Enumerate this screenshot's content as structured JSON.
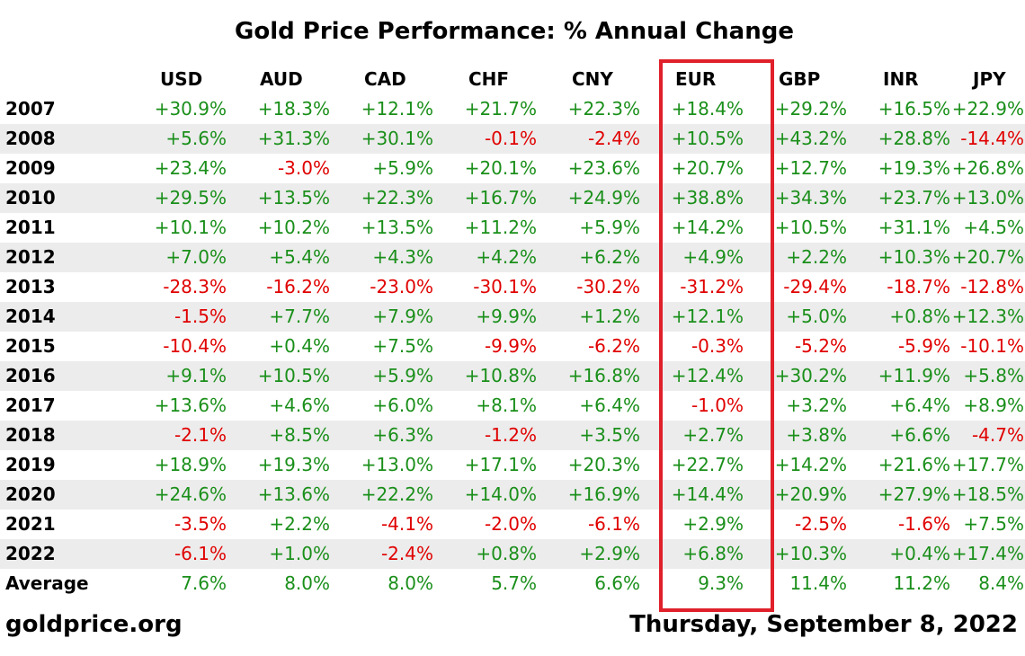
{
  "chart_data": {
    "type": "table",
    "title": "Gold Price Performance: % Annual Change",
    "columns": [
      "USD",
      "AUD",
      "CAD",
      "CHF",
      "CNY",
      "EUR",
      "GBP",
      "INR",
      "JPY"
    ],
    "highlighted_column": "EUR",
    "highlight_color": "#e0202a",
    "positive_color": "#1a8f1a",
    "negative_color": "#e00000",
    "rows": [
      {
        "label": "2007",
        "values": [
          "+30.9%",
          "+18.3%",
          "+12.1%",
          "+21.7%",
          "+22.3%",
          "+18.4%",
          "+29.2%",
          "+16.5%",
          "+22.9%"
        ]
      },
      {
        "label": "2008",
        "values": [
          "+5.6%",
          "+31.3%",
          "+30.1%",
          "-0.1%",
          "-2.4%",
          "+10.5%",
          "+43.2%",
          "+28.8%",
          "-14.4%"
        ]
      },
      {
        "label": "2009",
        "values": [
          "+23.4%",
          "-3.0%",
          "+5.9%",
          "+20.1%",
          "+23.6%",
          "+20.7%",
          "+12.7%",
          "+19.3%",
          "+26.8%"
        ]
      },
      {
        "label": "2010",
        "values": [
          "+29.5%",
          "+13.5%",
          "+22.3%",
          "+16.7%",
          "+24.9%",
          "+38.8%",
          "+34.3%",
          "+23.7%",
          "+13.0%"
        ]
      },
      {
        "label": "2011",
        "values": [
          "+10.1%",
          "+10.2%",
          "+13.5%",
          "+11.2%",
          "+5.9%",
          "+14.2%",
          "+10.5%",
          "+31.1%",
          "+4.5%"
        ]
      },
      {
        "label": "2012",
        "values": [
          "+7.0%",
          "+5.4%",
          "+4.3%",
          "+4.2%",
          "+6.2%",
          "+4.9%",
          "+2.2%",
          "+10.3%",
          "+20.7%"
        ]
      },
      {
        "label": "2013",
        "values": [
          "-28.3%",
          "-16.2%",
          "-23.0%",
          "-30.1%",
          "-30.2%",
          "-31.2%",
          "-29.4%",
          "-18.7%",
          "-12.8%"
        ]
      },
      {
        "label": "2014",
        "values": [
          "-1.5%",
          "+7.7%",
          "+7.9%",
          "+9.9%",
          "+1.2%",
          "+12.1%",
          "+5.0%",
          "+0.8%",
          "+12.3%"
        ]
      },
      {
        "label": "2015",
        "values": [
          "-10.4%",
          "+0.4%",
          "+7.5%",
          "-9.9%",
          "-6.2%",
          "-0.3%",
          "-5.2%",
          "-5.9%",
          "-10.1%"
        ]
      },
      {
        "label": "2016",
        "values": [
          "+9.1%",
          "+10.5%",
          "+5.9%",
          "+10.8%",
          "+16.8%",
          "+12.4%",
          "+30.2%",
          "+11.9%",
          "+5.8%"
        ]
      },
      {
        "label": "2017",
        "values": [
          "+13.6%",
          "+4.6%",
          "+6.0%",
          "+8.1%",
          "+6.4%",
          "-1.0%",
          "+3.2%",
          "+6.4%",
          "+8.9%"
        ]
      },
      {
        "label": "2018",
        "values": [
          "-2.1%",
          "+8.5%",
          "+6.3%",
          "-1.2%",
          "+3.5%",
          "+2.7%",
          "+3.8%",
          "+6.6%",
          "-4.7%"
        ]
      },
      {
        "label": "2019",
        "values": [
          "+18.9%",
          "+19.3%",
          "+13.0%",
          "+17.1%",
          "+20.3%",
          "+22.7%",
          "+14.2%",
          "+21.6%",
          "+17.7%"
        ]
      },
      {
        "label": "2020",
        "values": [
          "+24.6%",
          "+13.6%",
          "+22.2%",
          "+14.0%",
          "+16.9%",
          "+14.4%",
          "+20.9%",
          "+27.9%",
          "+18.5%"
        ]
      },
      {
        "label": "2021",
        "values": [
          "-3.5%",
          "+2.2%",
          "-4.1%",
          "-2.0%",
          "-6.1%",
          "+2.9%",
          "-2.5%",
          "-1.6%",
          "+7.5%"
        ]
      },
      {
        "label": "2022",
        "values": [
          "-6.1%",
          "+1.0%",
          "-2.4%",
          "+0.8%",
          "+2.9%",
          "+6.8%",
          "+10.3%",
          "+0.4%",
          "+17.4%"
        ]
      },
      {
        "label": "Average",
        "values": [
          "7.6%",
          "8.0%",
          "8.0%",
          "5.7%",
          "6.6%",
          "9.3%",
          "11.4%",
          "11.2%",
          "8.4%"
        ]
      }
    ]
  },
  "footer": {
    "source": "goldprice.org",
    "date": "Thursday, September 8, 2022"
  }
}
